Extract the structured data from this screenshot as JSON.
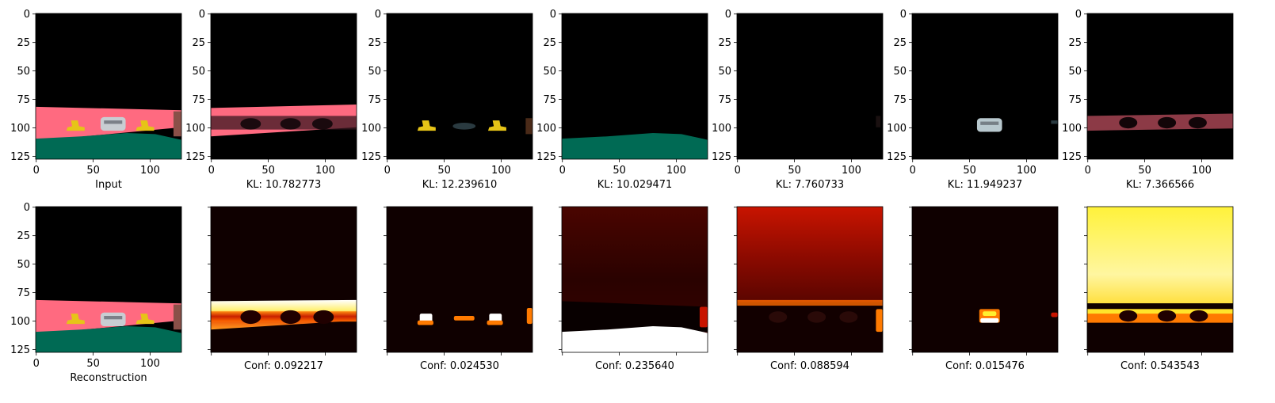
{
  "chart_data": {
    "type": "image-grid",
    "axis": {
      "xticks": [
        0,
        50,
        100
      ],
      "yticks": [
        0,
        25,
        50,
        75,
        100,
        125
      ],
      "xlim": [
        0,
        127
      ],
      "ylim": [
        127,
        0
      ]
    },
    "colors": {
      "background": "#000000",
      "road": "#FF6A80",
      "grass": "#006A54",
      "sign": "#E6C417",
      "car": "#C8CDD2",
      "heat_dark": "#0F0000",
      "heat_red": "#B01000",
      "heat_orange": "#FF7A00",
      "heat_yellow": "#FFF030",
      "heat_white": "#FFFFFF"
    },
    "top_row": [
      {
        "caption": "Input",
        "kind": "input"
      },
      {
        "caption": "KL: 10.782773",
        "kind": "road"
      },
      {
        "caption": "KL: 12.239610",
        "kind": "signs"
      },
      {
        "caption": "KL: 10.029471",
        "kind": "grass"
      },
      {
        "caption": "KL: 7.760733",
        "kind": "dark"
      },
      {
        "caption": "KL: 11.949237",
        "kind": "car"
      },
      {
        "caption": "KL: 7.366566",
        "kind": "road-faint"
      }
    ],
    "bottom_row": [
      {
        "caption": "Reconstruction",
        "kind": "recon",
        "conf": null
      },
      {
        "caption": "Conf: 0.092217",
        "kind": "heat-road",
        "conf": 0.092217
      },
      {
        "caption": "Conf: 0.024530",
        "kind": "heat-signs",
        "conf": 0.02453
      },
      {
        "caption": "Conf: 0.235640",
        "kind": "heat-grass",
        "conf": 0.23564
      },
      {
        "caption": "Conf: 0.088594",
        "kind": "heat-sky",
        "conf": 0.088594
      },
      {
        "caption": "Conf: 0.015476",
        "kind": "heat-car",
        "conf": 0.015476
      },
      {
        "caption": "Conf: 0.543543",
        "kind": "heat-bright",
        "conf": 0.543543
      }
    ]
  }
}
